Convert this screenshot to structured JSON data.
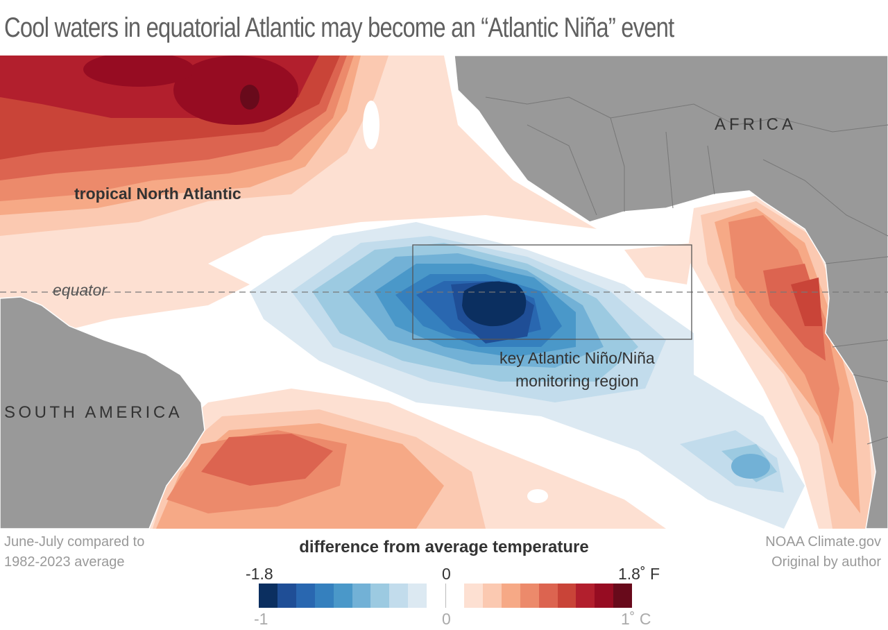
{
  "title": "Cool waters in equatorial Atlantic may become an “Atlantic Niña” event",
  "map": {
    "labels": {
      "africa": "AFRICA",
      "south_america": "SOUTH AMERICA",
      "tropical_north_atlantic": "tropical North Atlantic",
      "equator": "equator",
      "monitoring_region_line1": "key Atlantic Niño/Niña",
      "monitoring_region_line2": "monitoring region"
    },
    "land_color": "#999999"
  },
  "notes": {
    "period_line1": "June-July compared to",
    "period_line2": "1982-2023 average",
    "credit_line1": "NOAA Climate.gov",
    "credit_line2": "Original by author"
  },
  "legend": {
    "title": "difference from average temperature",
    "fahrenheit": {
      "min": "-1.8",
      "mid": "0",
      "max": "1.8˚ F"
    },
    "celsius": {
      "min": "-1",
      "mid": "0",
      "max": "1˚ C"
    },
    "colors": [
      "#0b2f60",
      "#1f4e96",
      "#2967b0",
      "#3580be",
      "#4a98c9",
      "#72b1d6",
      "#9ccae1",
      "#c2dcec",
      "#dce9f2",
      "#ffffff",
      "#ffffff",
      "#fde0d2",
      "#fbc9b1",
      "#f6a986",
      "#ec8a6b",
      "#dc6450",
      "#c94438",
      "#b21f2d",
      "#960c22",
      "#680a1b"
    ]
  }
}
